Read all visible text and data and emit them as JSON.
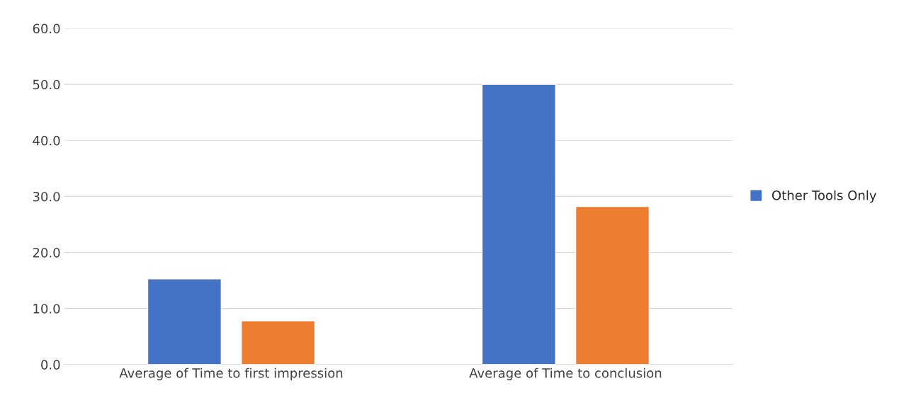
{
  "chart_data": {
    "type": "bar",
    "categories": [
      "Average of Time to first impression",
      "Average of Time to conclusion"
    ],
    "series": [
      {
        "name": "Other Tools Only",
        "color": "#4472c4",
        "values": [
          15.3,
          50.0
        ]
      },
      {
        "color": "#ed7d31",
        "values": [
          7.8,
          28.2
        ]
      }
    ],
    "ylim": [
      0,
      60
    ],
    "yticks": [
      {
        "value": 0,
        "label": "0.0"
      },
      {
        "value": 10,
        "label": "10.0"
      },
      {
        "value": 20,
        "label": "20.0"
      },
      {
        "value": 30,
        "label": "30.0"
      },
      {
        "value": 40,
        "label": "40.0"
      },
      {
        "value": 50,
        "label": "50.0"
      },
      {
        "value": 60,
        "label": "60.0"
      }
    ],
    "grid": "y",
    "legend": "right"
  }
}
